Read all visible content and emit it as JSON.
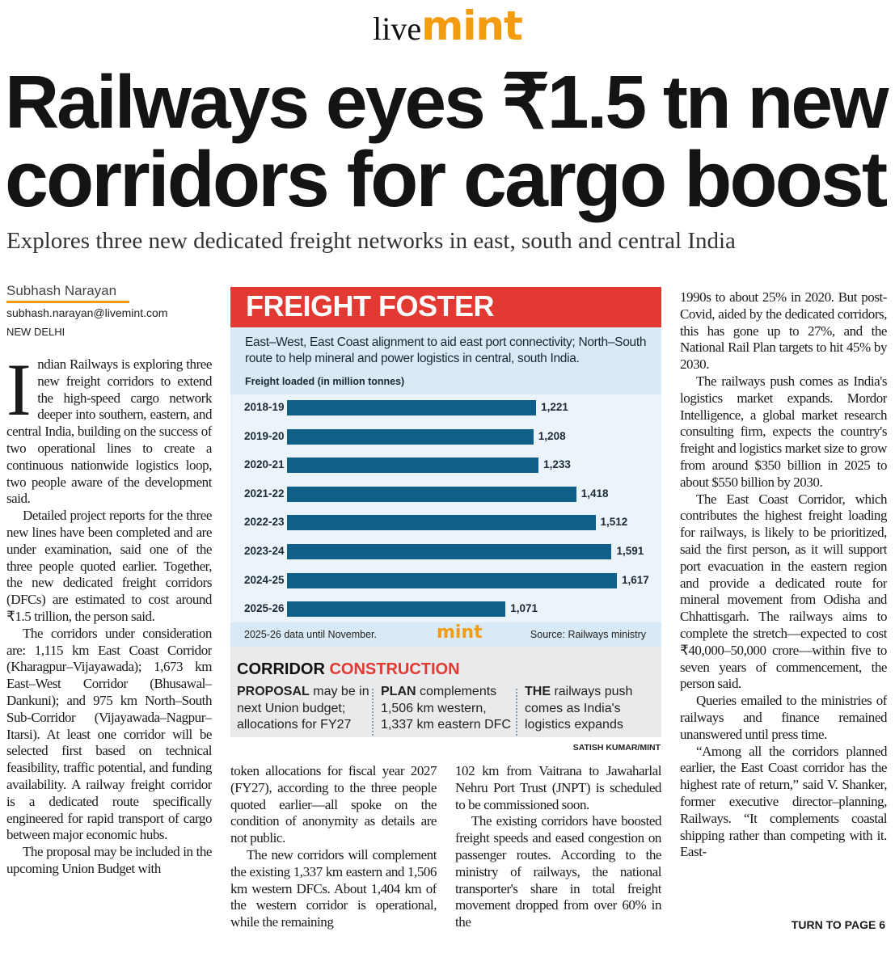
{
  "masthead": {
    "live": "live",
    "mint": "mint"
  },
  "headline": [
    "Railways eyes ₹1.5 tn new",
    "corridors for cargo boost"
  ],
  "subheadline": "Explores three new dedicated freight networks in east, south and central India",
  "byline": {
    "name": "Subhash Narayan",
    "email": "subhash.narayan@livemint.com",
    "dateline": "NEW DELHI"
  },
  "columns": [
    [
      "Indian Railways is exploring three new freight corridors to extend the high-speed cargo network deeper into southern, eastern, and central India, building on the success of two operational lines to create a continuous nationwide logistics loop, two people aware of the development said.",
      "Detailed project reports for the three new lines have been completed and are under examination, said one of the three people quoted earlier. Together, the new dedicated freight corridors (DFCs) are estimated to cost around ₹1.5 trillion, the person said.",
      "The corridors under consideration are: 1,115 km East Coast Corridor (Kharagpur–Vijayawada); 1,673 km East–West Corridor (Bhusawal–Dankuni); and 975 km North–South Sub-Corridor (Vijayawada–Nagpur–Itarsi). At least one corridor will be selected first based on technical feasibility, traffic potential, and funding availability. A railway freight corridor is a dedicated route specifically engineered for rapid transport of cargo between major economic hubs.",
      "The proposal may be included in the upcoming Union Budget with"
    ],
    [
      "token allocations for fiscal year 2027 (FY27), according to the three people quoted earlier—all spoke on the condition of anonymity as details are not public.",
      "The new corridors will complement the existing 1,337 km eastern and 1,506 km western DFCs. About 1,404 km of the western corridor is operational, while the remaining"
    ],
    [
      "102 km from Vaitrana to Jawaharlal Nehru Port Trust (JNPT) is scheduled to be commissioned soon.",
      "The existing corridors have boosted freight speeds and eased congestion on passenger routes. According to the ministry of railways, the national transporter's share in total freight movement dropped from over 60% in the"
    ],
    [
      "1990s to about 25% in 2020. But post-Covid, aided by the dedicated corridors, this has gone up to 27%, and the National Rail Plan targets to hit 45% by 2030.",
      "The railways push comes as India's logistics market expands. Mordor Intelligence, a global market research consulting firm, expects the country's freight and logistics market size to grow from around $350 billion in 2025 to about $550 billion by 2030.",
      "The East Coast Corridor, which contributes the highest freight loading for railways, is likely to be prioritized, said the first person, as it will support port evacuation in the eastern region and provide a dedicated route for mineral movement from Odisha and Chhattisgarh. The railways aims to complete the stretch—expected to cost ₹40,000–50,000 crore—within five to seven years of commencement, the person said.",
      "Queries emailed to the ministries of railways and finance remained unanswered until press time.",
      "“Among all the corridors planned earlier, the East Coast corridor has the highest rate of return,” said V. Shanker, former executive director–planning, Railways. “It complements coastal shipping rather than competing with it. East-"
    ]
  ],
  "jump": "TURN TO PAGE 6",
  "chart_data": {
    "type": "bar",
    "orientation": "horizontal",
    "title": "FREIGHT FOSTER",
    "subtitle": "East–West, East Coast alignment to aid east port connectivity; North–South route to help mineral and power logistics in central, south India.",
    "axis_label": "Freight loaded (in million tonnes)",
    "categories": [
      "2018-19",
      "2019-20",
      "2020-21",
      "2021-22",
      "2022-23",
      "2023-24",
      "2024-25",
      "2025-26"
    ],
    "values": [
      1221,
      1208,
      1233,
      1418,
      1512,
      1591,
      1617,
      1071
    ],
    "value_labels": [
      "1,221",
      "1,208",
      "1,233",
      "1,418",
      "1,512",
      "1,591",
      "1,617",
      "1,071"
    ],
    "color": "#0f5f89",
    "note": "2025-26 data until November.",
    "brand": "mint",
    "source": "Source: Railways ministry"
  },
  "corridor_box": {
    "title_black": "CORRIDOR",
    "title_red": "CONSTRUCTION",
    "items": [
      {
        "lead": "PROPOSAL",
        "text": "may be in next Union budget; allocations for FY27"
      },
      {
        "lead": "PLAN",
        "text": "complements 1,506 km western, 1,337 km eastern DFC"
      },
      {
        "lead": "THE",
        "text": "railways push comes as India's logistics expands"
      }
    ]
  },
  "credit": "SATISH KUMAR/MINT"
}
